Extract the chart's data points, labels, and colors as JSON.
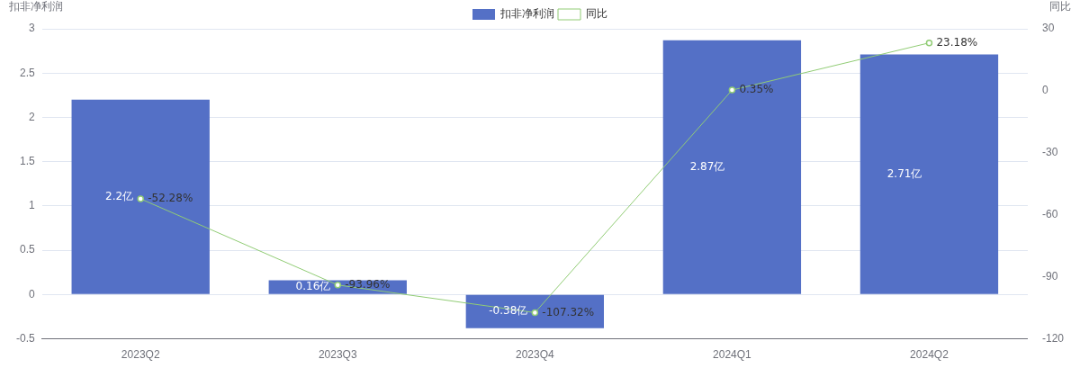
{
  "chart_data": {
    "type": "bar",
    "ylabel": "扣非净利润",
    "y2label": "同比",
    "categories": [
      "2023Q2",
      "2023Q3",
      "2023Q4",
      "2024Q1",
      "2024Q2"
    ],
    "series": [
      {
        "name": "扣非净利润",
        "color": "#5470c6",
        "values": [
          2.2,
          0.16,
          -0.38,
          2.87,
          2.71
        ],
        "value_labels": [
          "2.2亿",
          "0.16亿",
          "-0.38亿",
          "2.87亿",
          "2.71亿"
        ]
      },
      {
        "name": "同比",
        "type": "line",
        "axis": "y2",
        "color": "#91cc75",
        "values": [
          -52.28,
          -93.96,
          -107.32,
          0.35,
          23.18
        ],
        "value_labels": [
          "-52.28%",
          "-93.96%",
          "-107.32%",
          "0.35%",
          "23.18%"
        ]
      }
    ],
    "ylim": [
      -0.5,
      3
    ],
    "yticks": [
      -0.5,
      0,
      0.5,
      1,
      1.5,
      2,
      2.5,
      3
    ],
    "y2lim": [
      -120,
      30
    ],
    "y2ticks": [
      -120,
      -90,
      -60,
      -30,
      0,
      30
    ],
    "grid": "y",
    "legend": "top",
    "marker": "circle",
    "line_style": "solid"
  }
}
